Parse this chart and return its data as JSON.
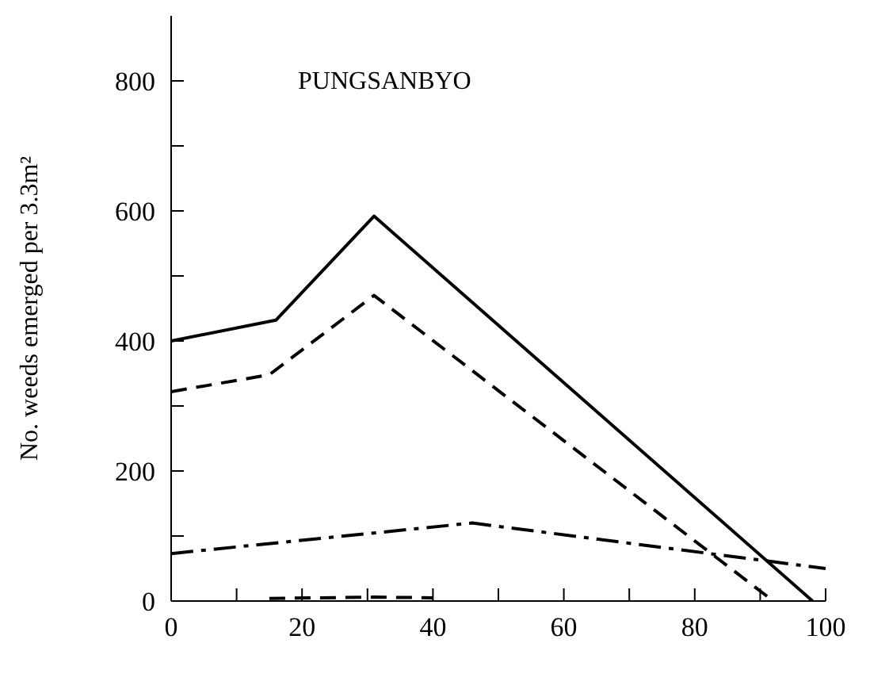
{
  "chart_data": {
    "type": "line",
    "title": "PUNGSANBYO",
    "ylabel": "No. weeds emerged per 3.3m²",
    "xlim": [
      0,
      100
    ],
    "xticks": [
      0,
      {
        "value": 10,
        "label": null
      },
      20,
      {
        "value": 30,
        "label": null
      },
      40,
      {
        "value": 50,
        "label": null
      },
      60,
      {
        "value": 70,
        "label": null
      },
      80,
      {
        "value": 90,
        "label": null
      },
      100
    ],
    "ylim": [
      0,
      900
    ],
    "yticks": [
      0,
      {
        "value": 100,
        "label": null
      },
      200,
      {
        "value": 300,
        "label": null
      },
      400,
      {
        "value": 500,
        "label": null
      },
      600,
      {
        "value": 700,
        "label": null
      },
      800
    ],
    "grid": false,
    "legend": false,
    "marker": "none",
    "series": [
      {
        "color": "#000000",
        "line_style": "solid",
        "x": [
          0,
          16,
          31,
          98
        ],
        "values": [
          400,
          432,
          592,
          0
        ]
      },
      {
        "color": "#000000",
        "line_style": "dashed",
        "x": [
          0,
          15,
          31,
          92
        ],
        "values": [
          322,
          348,
          470,
          0
        ]
      },
      {
        "color": "#000000",
        "line_style": "dashdot",
        "x": [
          0,
          46,
          100
        ],
        "values": [
          73,
          120,
          50
        ]
      },
      {
        "color": "#000000",
        "line_style": "dashed",
        "x": [
          15,
          31,
          40
        ],
        "values": [
          4,
          6,
          5
        ]
      }
    ]
  }
}
